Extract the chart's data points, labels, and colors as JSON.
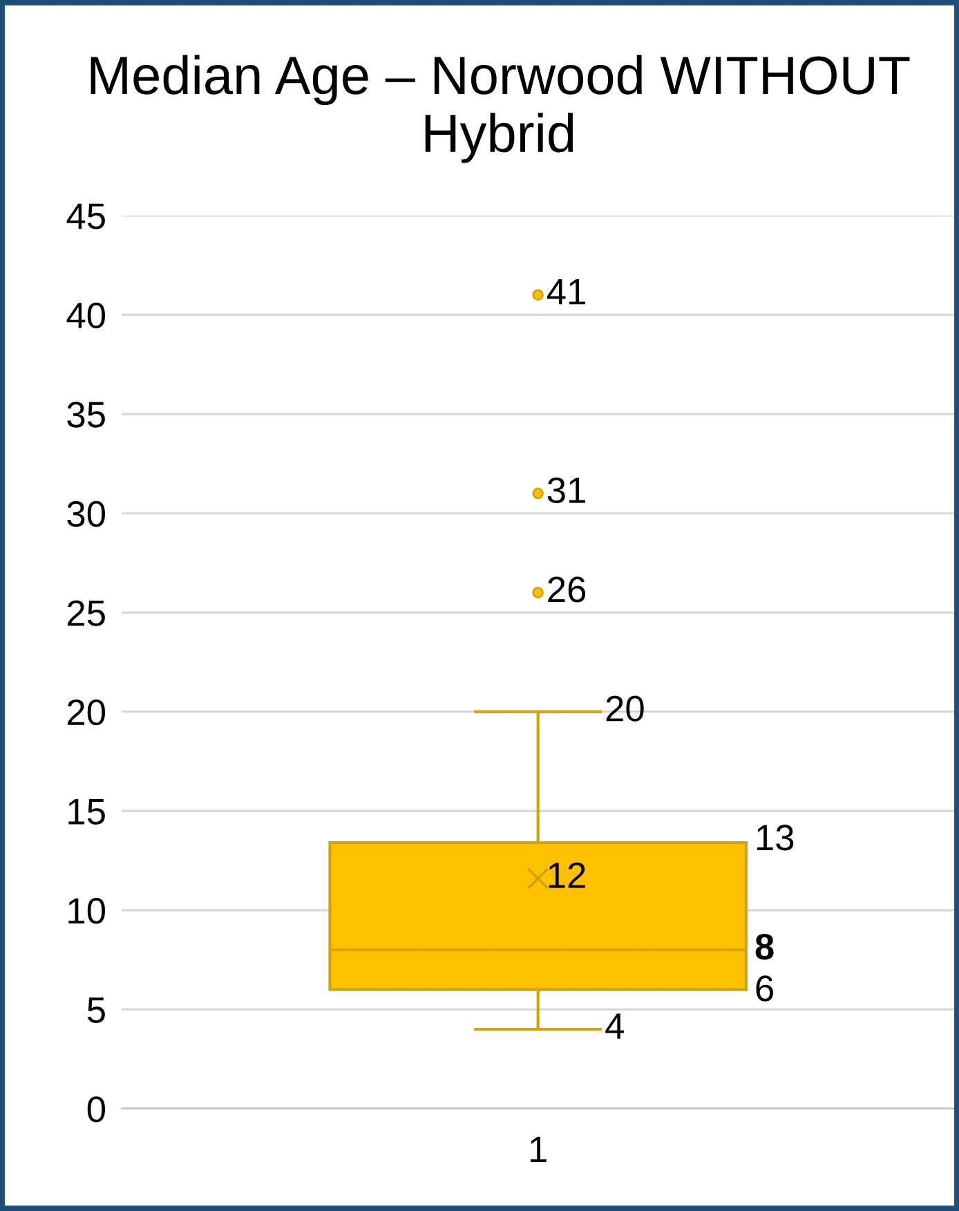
{
  "chart_data": {
    "type": "box",
    "title": "Median Age – Norwood WITHOUT Hybrid",
    "categories": [
      "1"
    ],
    "boxes": [
      {
        "low": 4,
        "q1": 6,
        "median": 8,
        "q3": 13.4,
        "high": 20,
        "mean": 11.6,
        "outliers": [
          26,
          31,
          41
        ]
      }
    ],
    "annotations": [
      "41",
      "31",
      "26",
      "20",
      "13",
      "12",
      "8",
      "6",
      "4"
    ],
    "color": "#ffc000",
    "ylim": [
      0,
      45
    ],
    "yticks": [
      0,
      5,
      10,
      15,
      20,
      25,
      30,
      35,
      40,
      45
    ],
    "grid": "y"
  }
}
